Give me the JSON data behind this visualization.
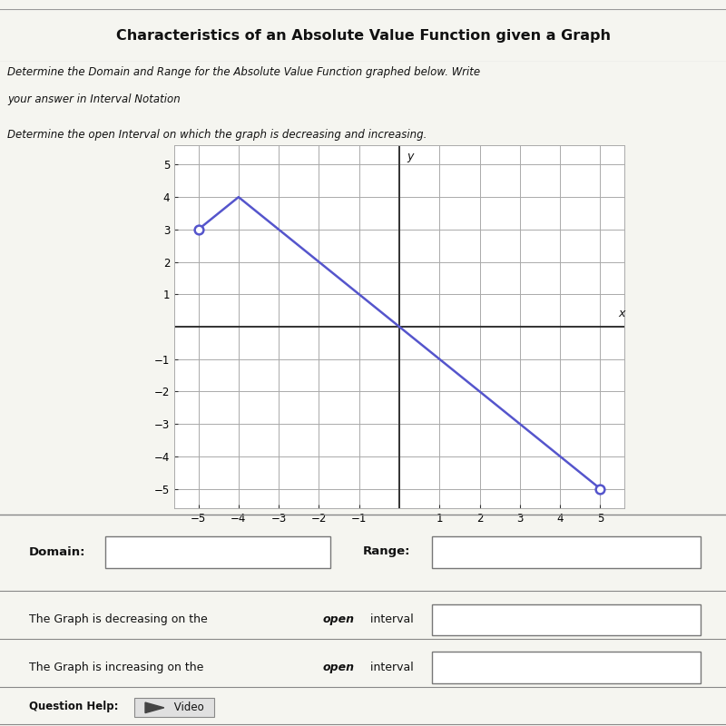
{
  "title": "Characteristics of an Absolute Value Function given a Graph",
  "subtitle1": "Determine the Domain and Range for the Absolute Value Function graphed below. Write",
  "subtitle2": "your answer in Interval Notation",
  "subtitle3": "Determine the open Interval on which the graph is decreasing and increasing.",
  "graph_points": [
    [
      -5,
      3
    ],
    [
      -4,
      4
    ],
    [
      5,
      -5
    ]
  ],
  "line_color": "#5555cc",
  "axis_color": "#333333",
  "grid_color": "#aaaaaa",
  "bg_color": "#f5f5f0",
  "header_bg": "#dcdcdc",
  "white": "#ffffff",
  "xlim": [
    -5.6,
    5.6
  ],
  "ylim": [
    -5.6,
    5.6
  ],
  "xticks": [
    -5,
    -4,
    -3,
    -2,
    -1,
    1,
    2,
    3,
    4,
    5
  ],
  "yticks": [
    -5,
    -4,
    -3,
    -2,
    -1,
    1,
    2,
    3,
    4,
    5
  ],
  "xlabel": "x",
  "ylabel": "y",
  "domain_label": "Domain:",
  "range_label": "Range:",
  "dec_text1": "The Graph is decreasing on the ",
  "dec_bold": "open",
  "dec_text2": " interval",
  "inc_text1": "The Graph is increasing on the ",
  "inc_bold": "open",
  "inc_text2": " interval",
  "question_help": "Question Help:",
  "video_label": " Video"
}
